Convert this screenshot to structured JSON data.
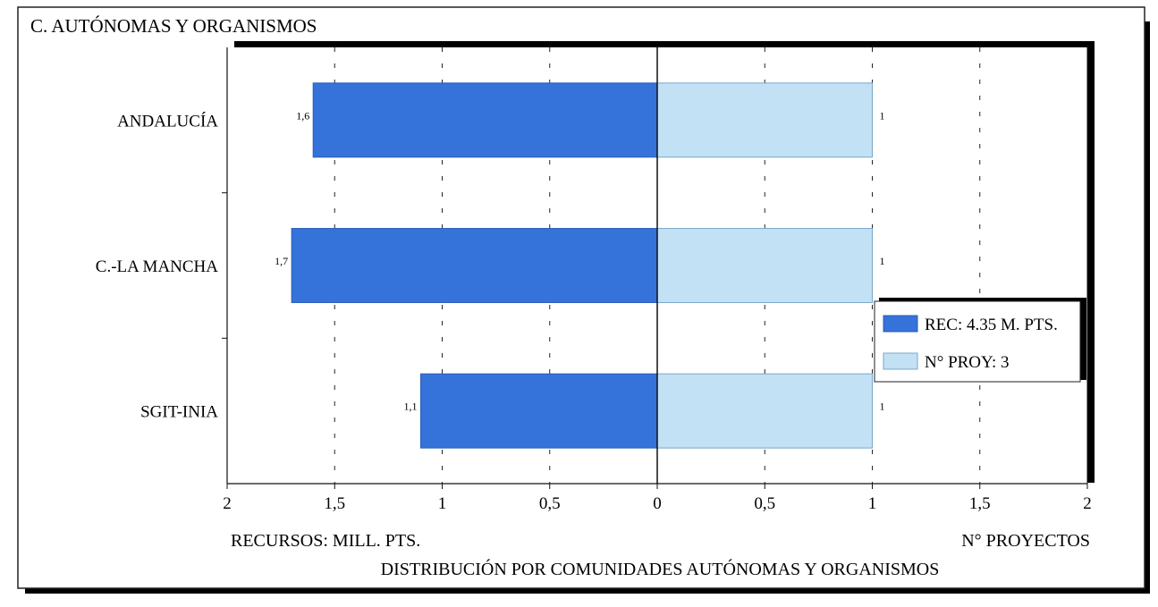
{
  "panel_title": "C. AUTÓNOMAS Y ORGANISMOS",
  "chart_data": {
    "type": "bar",
    "orientation": "horizontal-diverging",
    "categories": [
      "ANDALUCÍA",
      "C.-LA MANCHA",
      "SGIT-INIA"
    ],
    "series": [
      {
        "name": "REC: 4.35 M. PTS.",
        "side": "left",
        "values": [
          1.6,
          1.7,
          1.1
        ],
        "labels": [
          "1,6",
          "1,7",
          "1,1"
        ],
        "color": "#3572d9"
      },
      {
        "name": "N° PROY: 3",
        "side": "right",
        "values": [
          1,
          1,
          1
        ],
        "labels": [
          "1",
          "1",
          "1"
        ],
        "color": "#c2e1f5"
      }
    ],
    "xlim": [
      -2,
      2
    ],
    "tick_values": [
      -2,
      -1.5,
      -1,
      -0.5,
      0,
      0.5,
      1,
      1.5,
      2
    ],
    "tick_labels": [
      "2",
      "1,5",
      "1",
      "0,5",
      "0",
      "0,5",
      "1",
      "1,5",
      "2"
    ],
    "xlabel_left": "RECURSOS: MILL. PTS.",
    "xlabel_right": "N° PROYECTOS",
    "caption": "DISTRIBUCIÓN POR COMUNIDADES AUTÓNOMAS Y ORGANISMOS",
    "grid": "vertical-dashed",
    "legend_position": "right"
  }
}
